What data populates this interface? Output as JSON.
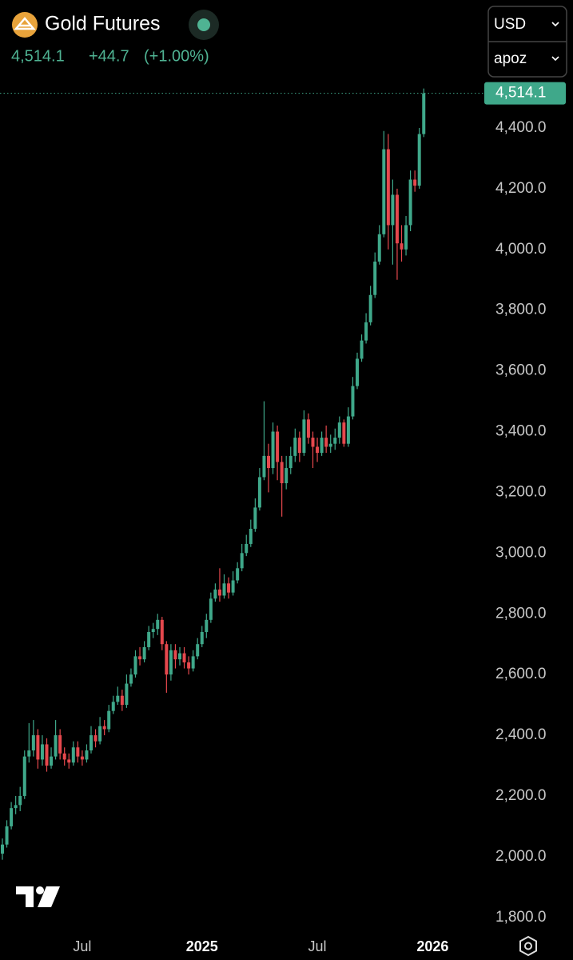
{
  "chart_data": {
    "type": "candlestick",
    "title": "Gold Futures",
    "change": "+44.7",
    "change_percent": "(+1.00%)",
    "currency": "USD",
    "unit": "apoz",
    "last_price": {
      "value": 4514.1,
      "label": "4,514.1"
    },
    "up_color": "#3fa88a",
    "down_color": "#e5484d",
    "categories": [
      null,
      null,
      null,
      null,
      null,
      null,
      null,
      null,
      null,
      null,
      null,
      null,
      null,
      null,
      null,
      null,
      null,
      null,
      "Jul",
      null,
      null,
      null,
      null,
      null,
      null,
      null,
      null,
      null,
      null,
      null,
      null,
      null,
      null,
      null,
      null,
      null,
      null,
      null,
      null,
      null,
      null,
      null,
      null,
      null,
      null,
      "2025",
      null,
      null,
      null,
      null,
      null,
      null,
      null,
      null,
      null,
      null,
      null,
      null,
      null,
      null,
      null,
      null,
      null,
      null,
      null,
      null,
      null,
      null,
      null,
      null,
      null,
      "Jul",
      null,
      null,
      null,
      null,
      null,
      null,
      null,
      null,
      null,
      null,
      null,
      null,
      null,
      null,
      null,
      null,
      null,
      null,
      null,
      null,
      null,
      null,
      null,
      null,
      null,
      "2026"
    ],
    "open": [
      2010,
      2040,
      2100,
      2160,
      2170,
      2200,
      2330,
      2350,
      2400,
      2320,
      2370,
      2300,
      2330,
      2400,
      2340,
      2320,
      2310,
      2360,
      2330,
      2320,
      2350,
      2400,
      2380,
      2430,
      2420,
      2480,
      2510,
      2530,
      2500,
      2570,
      2600,
      2660,
      2650,
      2690,
      2740,
      2750,
      2780,
      2700,
      2600,
      2680,
      2650,
      2670,
      2640,
      2620,
      2660,
      2700,
      2740,
      2780,
      2850,
      2880,
      2860,
      2900,
      2870,
      2910,
      2950,
      3000,
      3030,
      3080,
      3150,
      3250,
      3320,
      3280,
      3400,
      3300,
      3230,
      3280,
      3320,
      3380,
      3330,
      3440,
      3380,
      3350,
      3330,
      3380,
      3350,
      3360,
      3380,
      3430,
      3360,
      3450,
      3550,
      3640,
      3700,
      3760,
      3850,
      3960,
      4050,
      4330,
      4080,
      4180,
      4020,
      4000,
      4080,
      4230,
      4210,
      4380,
      null,
      null
    ],
    "high": [
      2060,
      2120,
      2180,
      2200,
      2230,
      2350,
      2440,
      2450,
      2420,
      2400,
      2390,
      2360,
      2450,
      2420,
      2360,
      2340,
      2380,
      2380,
      2350,
      2370,
      2430,
      2420,
      2460,
      2450,
      2500,
      2530,
      2560,
      2550,
      2600,
      2620,
      2680,
      2690,
      2710,
      2760,
      2770,
      2800,
      2790,
      2710,
      2700,
      2700,
      2690,
      2690,
      2660,
      2680,
      2720,
      2760,
      2800,
      2870,
      2900,
      2950,
      2930,
      2920,
      2940,
      2970,
      3030,
      3060,
      3110,
      3180,
      3280,
      3500,
      3360,
      3430,
      3420,
      3320,
      3320,
      3350,
      3410,
      3400,
      3470,
      3460,
      3400,
      3380,
      3400,
      3420,
      3390,
      3410,
      3450,
      3440,
      3480,
      3580,
      3660,
      3720,
      3790,
      3880,
      3990,
      4080,
      4390,
      4380,
      4230,
      4200,
      4080,
      4110,
      4260,
      4260,
      4400,
      4530,
      null,
      null
    ],
    "low": [
      1990,
      2030,
      2090,
      2140,
      2150,
      2190,
      2310,
      2330,
      2290,
      2300,
      2280,
      2290,
      2320,
      2320,
      2300,
      2290,
      2300,
      2310,
      2300,
      2310,
      2340,
      2360,
      2370,
      2400,
      2410,
      2470,
      2500,
      2480,
      2490,
      2560,
      2590,
      2630,
      2640,
      2680,
      2720,
      2730,
      2680,
      2540,
      2580,
      2620,
      2630,
      2620,
      2600,
      2610,
      2650,
      2690,
      2720,
      2770,
      2840,
      2840,
      2850,
      2850,
      2860,
      2900,
      2940,
      2990,
      3020,
      3070,
      3140,
      3240,
      3200,
      3260,
      3240,
      3120,
      3210,
      3260,
      3300,
      3300,
      3320,
      3360,
      3280,
      3300,
      3320,
      3330,
      3330,
      3340,
      3360,
      3350,
      3350,
      3440,
      3540,
      3630,
      3690,
      3750,
      3840,
      3950,
      4040,
      4000,
      3950,
      3900,
      3960,
      3980,
      4060,
      4190,
      4200,
      4370,
      null,
      null
    ],
    "close": [
      2040,
      2100,
      2160,
      2170,
      2200,
      2330,
      2350,
      2400,
      2320,
      2370,
      2300,
      2330,
      2400,
      2340,
      2320,
      2310,
      2360,
      2330,
      2320,
      2350,
      2400,
      2380,
      2430,
      2420,
      2480,
      2510,
      2530,
      2500,
      2570,
      2600,
      2660,
      2650,
      2690,
      2740,
      2750,
      2780,
      2700,
      2600,
      2680,
      2650,
      2670,
      2640,
      2620,
      2660,
      2700,
      2740,
      2780,
      2850,
      2880,
      2860,
      2900,
      2870,
      2910,
      2950,
      3000,
      3030,
      3080,
      3150,
      3250,
      3320,
      3280,
      3400,
      3300,
      3230,
      3280,
      3320,
      3380,
      3330,
      3440,
      3380,
      3350,
      3330,
      3380,
      3350,
      3360,
      3380,
      3430,
      3360,
      3450,
      3550,
      3640,
      3700,
      3760,
      3850,
      3960,
      4050,
      4330,
      4080,
      4180,
      4020,
      4000,
      4080,
      4230,
      4210,
      4380,
      4514.1,
      null,
      null
    ],
    "ylim": [
      1752,
      4558
    ],
    "yticks": [
      {
        "value": 1800,
        "label": "1,800.0"
      },
      {
        "value": 2000,
        "label": "2,000.0"
      },
      {
        "value": 2200,
        "label": "2,200.0"
      },
      {
        "value": 2400,
        "label": "2,400.0"
      },
      {
        "value": 2600,
        "label": "2,600.0"
      },
      {
        "value": 2800,
        "label": "2,800.0"
      },
      {
        "value": 3000,
        "label": "3,000.0"
      },
      {
        "value": 3200,
        "label": "3,200.0"
      },
      {
        "value": 3400,
        "label": "3,400.0"
      },
      {
        "value": 3600,
        "label": "3,600.0"
      },
      {
        "value": 3800,
        "label": "3,800.0"
      },
      {
        "value": 4000,
        "label": "4,000.0"
      },
      {
        "value": 4200,
        "label": "4,200.0"
      },
      {
        "value": 4400,
        "label": "4,400.0"
      }
    ]
  }
}
